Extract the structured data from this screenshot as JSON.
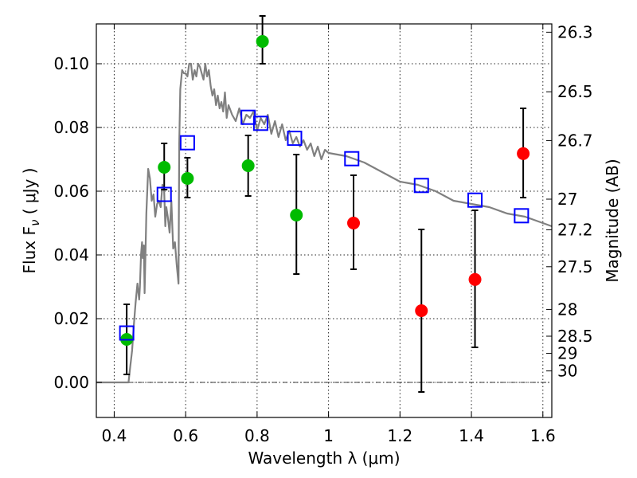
{
  "chart_data": {
    "type": "scatter",
    "xlabel": "Wavelength  λ (μm)",
    "ylabel": "Flux  F",
    "ylabel_sub": "ν",
    "ylabel_unit": "  ( μJy )",
    "y2label": "Magnitude (AB)",
    "xlim": [
      0.35,
      1.625
    ],
    "ylim": [
      -0.011,
      0.1125
    ],
    "grid": true,
    "x_ticks": [
      0.4,
      0.6,
      0.8,
      1.0,
      1.2,
      1.4,
      1.6
    ],
    "x_tick_labels": [
      "0.4",
      "0.6",
      "0.8",
      "1",
      "1.2",
      "1.4",
      "1.6"
    ],
    "y_ticks": [
      0.0,
      0.02,
      0.04,
      0.06,
      0.08,
      0.1
    ],
    "y_tick_labels": [
      "0.00",
      "0.02",
      "0.04",
      "0.06",
      "0.08",
      "0.10"
    ],
    "y2_ticks": [
      {
        "label": "26.3",
        "flux": 0.1099
      },
      {
        "label": "26.5",
        "flux": 0.0912
      },
      {
        "label": "26.7",
        "flux": 0.0759
      },
      {
        "label": "27",
        "flux": 0.0575
      },
      {
        "label": "27.2",
        "flux": 0.0479
      },
      {
        "label": "27.5",
        "flux": 0.0363
      },
      {
        "label": "28",
        "flux": 0.0229
      },
      {
        "label": "28.5",
        "flux": 0.0145
      },
      {
        "label": "29",
        "flux": 0.0091
      },
      {
        "label": "30",
        "flux": 0.0036
      }
    ],
    "colors": {
      "model": "#808080",
      "green": "#00bb00",
      "red": "#ff0000",
      "box": "#0000ff",
      "errorbar": "#000000"
    },
    "series": [
      {
        "name": "Model SED",
        "type": "line",
        "x": [
          0.35,
          0.425,
          0.43,
          0.435,
          0.44,
          0.445,
          0.45,
          0.455,
          0.46,
          0.465,
          0.47,
          0.472,
          0.475,
          0.478,
          0.48,
          0.483,
          0.485,
          0.49,
          0.495,
          0.5,
          0.505,
          0.51,
          0.515,
          0.52,
          0.525,
          0.53,
          0.535,
          0.54,
          0.543,
          0.546,
          0.55,
          0.555,
          0.56,
          0.565,
          0.57,
          0.575,
          0.58,
          0.582,
          0.585,
          0.59,
          0.595,
          0.6,
          0.605,
          0.61,
          0.615,
          0.62,
          0.625,
          0.63,
          0.635,
          0.64,
          0.645,
          0.65,
          0.655,
          0.66,
          0.665,
          0.67,
          0.675,
          0.68,
          0.685,
          0.69,
          0.695,
          0.7,
          0.705,
          0.71,
          0.715,
          0.72,
          0.73,
          0.74,
          0.75,
          0.76,
          0.77,
          0.78,
          0.79,
          0.8,
          0.81,
          0.82,
          0.83,
          0.84,
          0.85,
          0.86,
          0.87,
          0.88,
          0.89,
          0.9,
          0.91,
          0.92,
          0.93,
          0.94,
          0.95,
          0.96,
          0.97,
          0.98,
          0.99,
          1.0,
          1.05,
          1.1,
          1.15,
          1.2,
          1.25,
          1.3,
          1.35,
          1.4,
          1.45,
          1.5,
          1.55,
          1.6,
          1.625
        ],
        "y": [
          0.0,
          0.0,
          0.0,
          0.0,
          0.0,
          0.005,
          0.01,
          0.018,
          0.025,
          0.031,
          0.026,
          0.03,
          0.04,
          0.044,
          0.039,
          0.043,
          0.028,
          0.053,
          0.067,
          0.064,
          0.057,
          0.059,
          0.052,
          0.056,
          0.057,
          0.055,
          0.062,
          0.06,
          0.049,
          0.055,
          0.052,
          0.047,
          0.057,
          0.042,
          0.044,
          0.037,
          0.031,
          0.075,
          0.092,
          0.098,
          0.097,
          0.097,
          0.096,
          0.1,
          0.1,
          0.095,
          0.098,
          0.096,
          0.1,
          0.099,
          0.097,
          0.095,
          0.1,
          0.096,
          0.098,
          0.093,
          0.09,
          0.092,
          0.087,
          0.09,
          0.086,
          0.088,
          0.085,
          0.091,
          0.083,
          0.087,
          0.084,
          0.082,
          0.086,
          0.081,
          0.084,
          0.083,
          0.085,
          0.079,
          0.083,
          0.081,
          0.084,
          0.078,
          0.082,
          0.077,
          0.081,
          0.076,
          0.079,
          0.075,
          0.077,
          0.074,
          0.076,
          0.073,
          0.075,
          0.071,
          0.074,
          0.07,
          0.073,
          0.072,
          0.071,
          0.069,
          0.066,
          0.063,
          0.062,
          0.06,
          0.057,
          0.056,
          0.055,
          0.053,
          0.052,
          0.05,
          0.049
        ]
      },
      {
        "name": "Model photometry",
        "type": "open-square",
        "x": [
          0.435,
          0.54,
          0.605,
          0.775,
          0.81,
          0.905,
          1.065,
          1.26,
          1.41,
          1.54
        ],
        "y": [
          0.0155,
          0.059,
          0.0752,
          0.0832,
          0.0813,
          0.0766,
          0.0702,
          0.0618,
          0.0572,
          0.0523
        ]
      },
      {
        "name": "Detections",
        "type": "filled-circle",
        "color": "green",
        "x": [
          0.435,
          0.54,
          0.605,
          0.775,
          0.815,
          0.91
        ],
        "y": [
          0.0135,
          0.0675,
          0.064,
          0.068,
          0.107,
          0.0525
        ],
        "yerr_low": [
          0.0025,
          0.0605,
          0.058,
          0.0585,
          0.1,
          0.034
        ],
        "yerr_high": [
          0.0245,
          0.075,
          0.0705,
          0.0775,
          0.115,
          0.0715
        ]
      },
      {
        "name": "Non-detections",
        "type": "filled-circle",
        "color": "red",
        "x": [
          1.07,
          1.26,
          1.41,
          1.545
        ],
        "y": [
          0.05,
          0.0225,
          0.0323,
          0.0718
        ],
        "yerr_low": [
          0.0355,
          -0.003,
          0.011,
          0.058
        ],
        "yerr_high": [
          0.065,
          0.048,
          0.054,
          0.086
        ]
      }
    ]
  }
}
